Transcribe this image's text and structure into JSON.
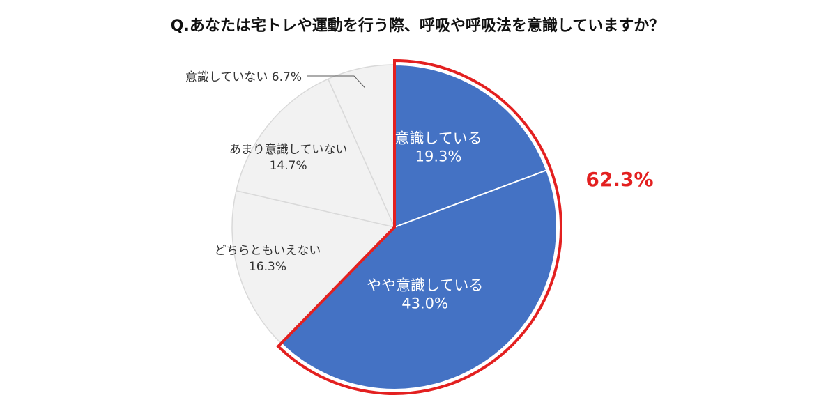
{
  "chart_data": {
    "type": "pie",
    "title": "Q.あなたは宅トレや運動を行う際、呼吸や呼吸法を意識していますか？",
    "slices": [
      {
        "label": "意識している",
        "value": 19.3,
        "value_label": "19.3%",
        "color": "#4472c4",
        "highlighted": true
      },
      {
        "label": "やや意識している",
        "value": 43.0,
        "value_label": "43.0%",
        "color": "#4472c4",
        "highlighted": true
      },
      {
        "label": "どちらともいえない",
        "value": 16.3,
        "value_label": "16.3%",
        "color": "#f2f2f2",
        "highlighted": false
      },
      {
        "label": "あまり意識していない",
        "value": 14.7,
        "value_label": "14.7%",
        "color": "#f2f2f2",
        "highlighted": false
      },
      {
        "label": "意識していない",
        "value": 6.7,
        "value_label": "6.7%",
        "color": "#f2f2f2",
        "highlighted": false
      }
    ],
    "highlight_total": "62.3%",
    "highlight_color": "#e32020",
    "slice_border_color": "#ffffff",
    "outer_gray_border": "#d9d9d9"
  }
}
